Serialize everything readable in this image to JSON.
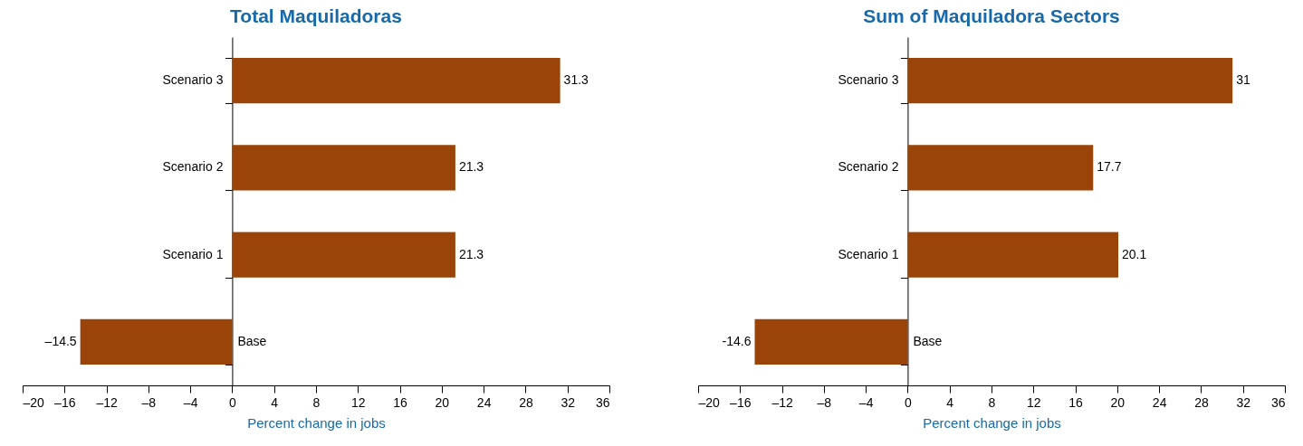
{
  "chart_data": [
    {
      "type": "bar",
      "orientation": "horizontal",
      "title": "Total Maquiladoras",
      "xlabel": "Percent change in jobs",
      "categories": [
        "Scenario 3",
        "Scenario 2",
        "Scenario 1",
        "Base"
      ],
      "values": [
        31.3,
        21.3,
        21.3,
        -14.5
      ],
      "value_labels": [
        "31.3",
        "21.3",
        "21.3",
        "–14.5"
      ],
      "color": "#9a4409",
      "xlim": [
        -20,
        36
      ],
      "xticks": [
        {
          "value": -20,
          "label": "–20"
        },
        {
          "value": -16,
          "label": "–16"
        },
        {
          "value": -12,
          "label": "–12"
        },
        {
          "value": -8,
          "label": "–8"
        },
        {
          "value": -4,
          "label": "–4"
        },
        0,
        4,
        8,
        12,
        16,
        20,
        24,
        28,
        32,
        36
      ]
    },
    {
      "type": "bar",
      "orientation": "horizontal",
      "title": "Sum of Maquiladora Sectors",
      "xlabel": "Percent change in jobs",
      "categories": [
        "Scenario 3",
        "Scenario 2",
        "Scenario 1",
        "Base"
      ],
      "values": [
        31,
        17.7,
        20.1,
        -14.6
      ],
      "value_labels": [
        "31",
        "17.7",
        "20.1",
        "-14.6"
      ],
      "color": "#9a4409",
      "xlim": [
        -20,
        36
      ],
      "xticks": [
        {
          "value": -20,
          "label": "–20"
        },
        {
          "value": -16,
          "label": "–16"
        },
        {
          "value": -12,
          "label": "–12"
        },
        {
          "value": -8,
          "label": "–8"
        },
        {
          "value": -4,
          "label": "–4"
        },
        0,
        4,
        8,
        12,
        16,
        20,
        24,
        28,
        32,
        36
      ]
    }
  ]
}
